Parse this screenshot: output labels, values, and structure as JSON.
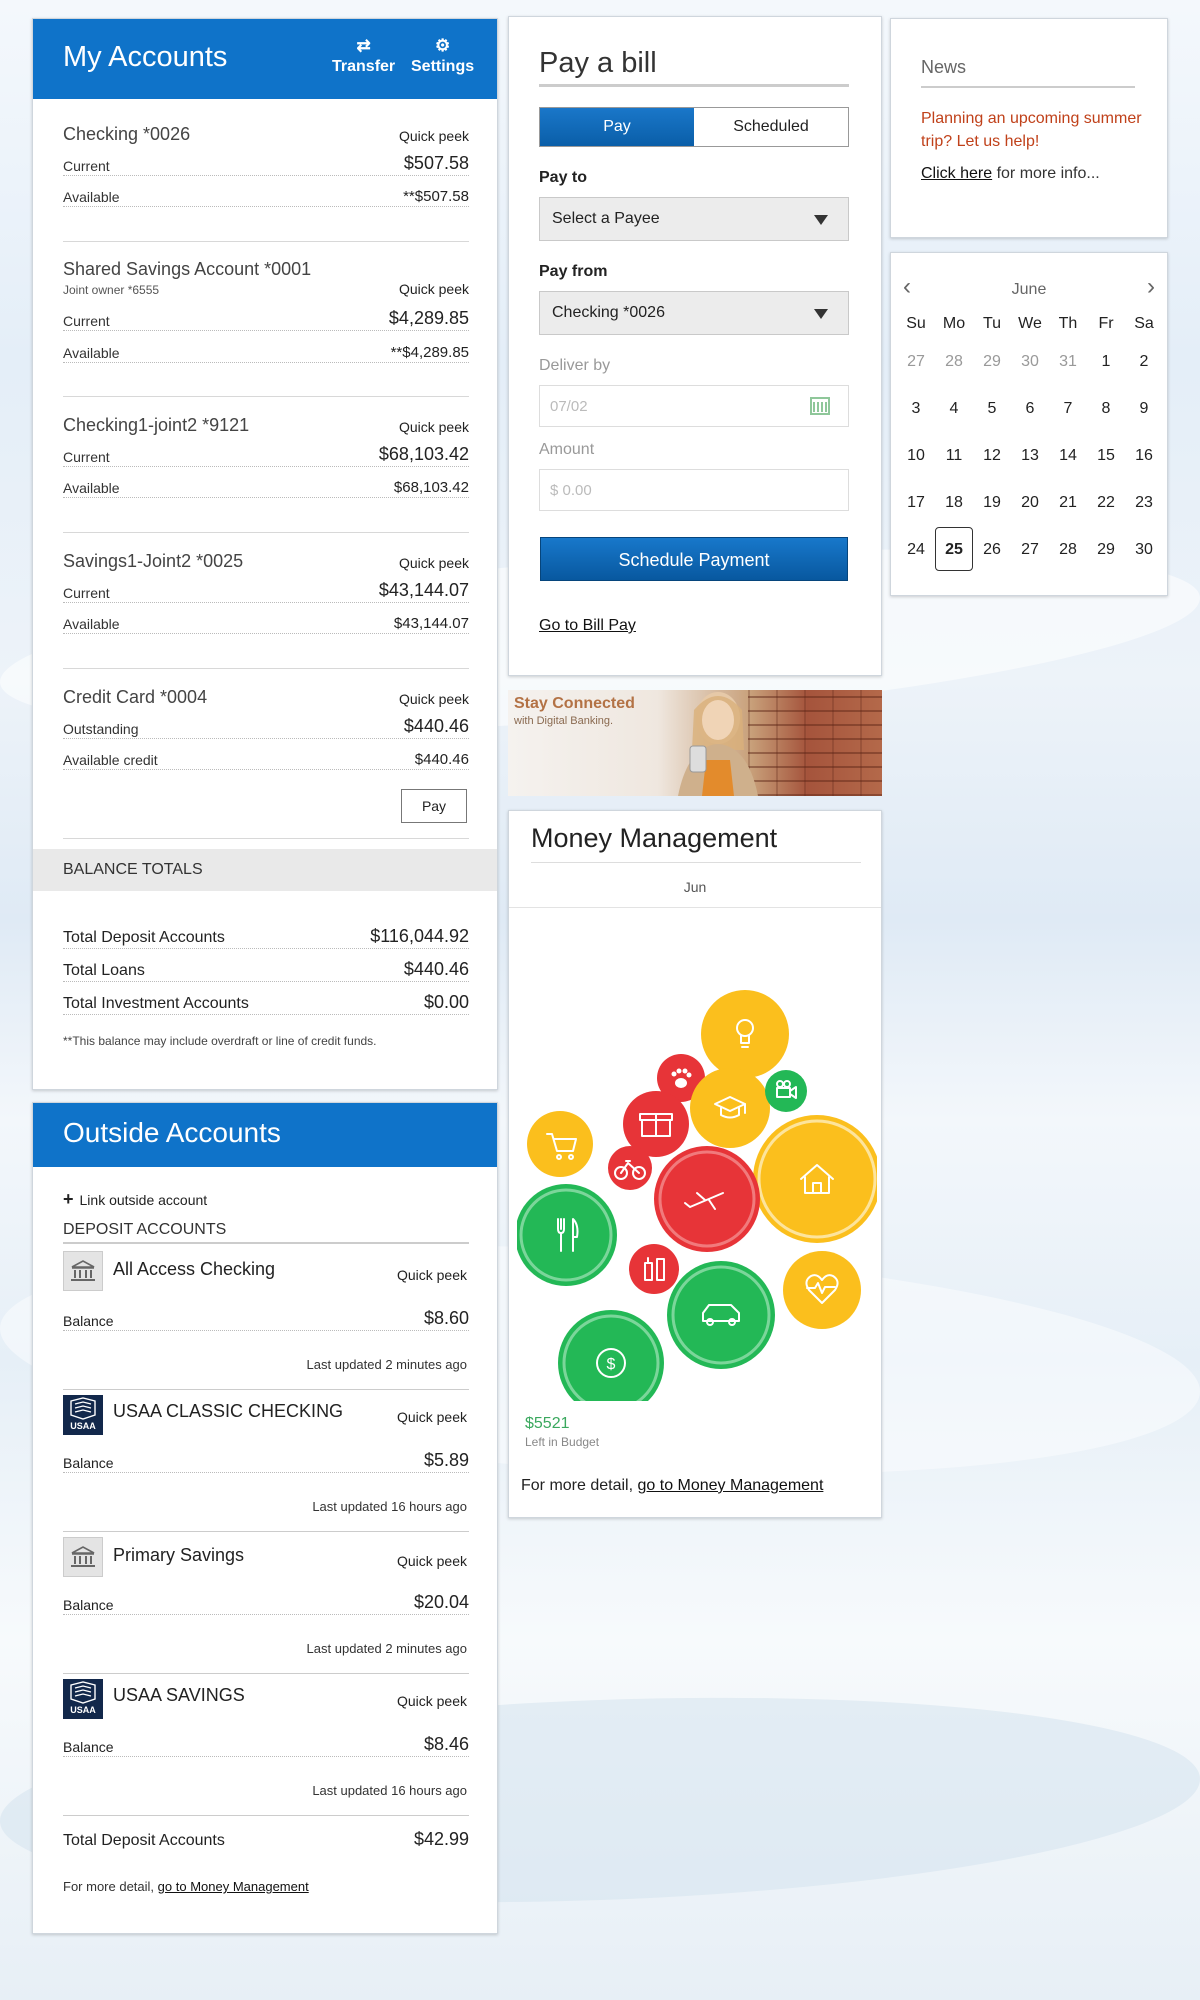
{
  "my_accounts": {
    "title": "My Accounts",
    "transfer_label": "Transfer",
    "settings_label": "Settings",
    "accounts": [
      {
        "name": "Checking  *0026",
        "quick_peek": "Quick peek",
        "rows": [
          {
            "label": "Current",
            "value": "$507.58"
          },
          {
            "label": "Available",
            "value": "**$507.58"
          }
        ]
      },
      {
        "name": "Shared Savings Account  *0001",
        "subtitle": "Joint owner *6555",
        "quick_peek": "Quick peek",
        "rows": [
          {
            "label": "Current",
            "value": "$4,289.85"
          },
          {
            "label": "Available",
            "value": "**$4,289.85"
          }
        ]
      },
      {
        "name": "Checking1-joint2  *9121",
        "quick_peek": "Quick peek",
        "rows": [
          {
            "label": "Current",
            "value": "$68,103.42"
          },
          {
            "label": "Available",
            "value": "$68,103.42"
          }
        ]
      },
      {
        "name": "Savings1-Joint2  *0025",
        "quick_peek": "Quick peek",
        "rows": [
          {
            "label": "Current",
            "value": "$43,144.07"
          },
          {
            "label": "Available",
            "value": "$43,144.07"
          }
        ]
      },
      {
        "name": "Credit Card  *0004",
        "quick_peek": "Quick peek",
        "rows": [
          {
            "label": "Outstanding",
            "value": "$440.46"
          },
          {
            "label": "Available credit",
            "value": "$440.46"
          }
        ]
      }
    ],
    "pay_label": "Pay",
    "balance_totals": {
      "header": "BALANCE TOTALS",
      "rows": [
        {
          "label": "Total Deposit Accounts",
          "value": "$116,044.92"
        },
        {
          "label": "Total Loans",
          "value": "$440.46"
        },
        {
          "label": "Total Investment Accounts",
          "value": "$0.00"
        }
      ],
      "note": "**This balance may include overdraft or line of credit funds."
    }
  },
  "outside_accounts": {
    "title": "Outside Accounts",
    "link_label": "Link outside account",
    "deposit_header": "DEPOSIT ACCOUNTS",
    "accounts": [
      {
        "name": "All Access Checking",
        "icon": "bank-icon",
        "quick_peek": "Quick peek",
        "balance_label": "Balance",
        "balance": "$8.60",
        "updated": "Last updated 2 minutes ago"
      },
      {
        "name": "USAA CLASSIC CHECKING",
        "icon": "usaa-logo",
        "logo_text": "USAA",
        "quick_peek": "Quick peek",
        "balance_label": "Balance",
        "balance": "$5.89",
        "updated": "Last updated 16 hours ago"
      },
      {
        "name": "Primary Savings",
        "icon": "bank-icon",
        "quick_peek": "Quick peek",
        "balance_label": "Balance",
        "balance": "$20.04",
        "updated": "Last updated 2 minutes ago"
      },
      {
        "name": "USAA SAVINGS",
        "icon": "usaa-logo",
        "logo_text": "USAA",
        "quick_peek": "Quick peek",
        "balance_label": "Balance",
        "balance": "$8.46",
        "updated": "Last updated 16 hours ago"
      }
    ],
    "total_label": "Total Deposit Accounts",
    "total_value": "$42.99",
    "more_prefix": "For more detail,",
    "more_link": "go to Money Management"
  },
  "pay_bill": {
    "title": "Pay a bill",
    "tabs": [
      "Pay",
      "Scheduled"
    ],
    "pay_to_label": "Pay to",
    "pay_to_value": "Select a Payee",
    "pay_from_label": "Pay from",
    "pay_from_value": "Checking *0026",
    "deliver_by_label": "Deliver by",
    "deliver_by_placeholder": "07/02",
    "amount_label": "Amount",
    "amount_placeholder": "$ 0.00",
    "schedule_button": "Schedule Payment",
    "go_link": "Go to Bill Pay"
  },
  "banner": {
    "title": "Stay Connected",
    "subtitle": "with Digital Banking."
  },
  "money_management": {
    "title": "Money Management",
    "month": "Jun",
    "left_amount": "$5521",
    "left_label": "Left in Budget",
    "more_prefix": "For more detail,",
    "more_link": "go to Money Management",
    "colors": {
      "yellow": "#fbbf1d",
      "red": "#e73438",
      "green": "#23b856"
    },
    "bubbles": [
      {
        "icon": "lightbulb-icon",
        "color": "yellow"
      },
      {
        "icon": "paw-icon",
        "color": "red"
      },
      {
        "icon": "graduation-cap-icon",
        "color": "yellow"
      },
      {
        "icon": "video-camera-icon",
        "color": "green"
      },
      {
        "icon": "shopping-cart-icon",
        "color": "yellow"
      },
      {
        "icon": "gift-icon",
        "color": "red"
      },
      {
        "icon": "bicycle-icon",
        "color": "red"
      },
      {
        "icon": "airplane-icon",
        "color": "red"
      },
      {
        "icon": "house-icon",
        "color": "yellow"
      },
      {
        "icon": "fork-knife-icon",
        "color": "green"
      },
      {
        "icon": "personal-care-icon",
        "color": "red"
      },
      {
        "icon": "car-icon",
        "color": "green"
      },
      {
        "icon": "heart-pulse-icon",
        "color": "yellow"
      },
      {
        "icon": "dollar-icon",
        "color": "green"
      }
    ]
  },
  "news": {
    "title": "News",
    "message": "Planning an upcoming summer trip? Let us help!",
    "link": "Click here",
    "link_suffix": " for more info..."
  },
  "calendar": {
    "month": "June",
    "weekdays": [
      "Su",
      "Mo",
      "Tu",
      "We",
      "Th",
      "Fr",
      "Sa"
    ],
    "weeks": [
      [
        "27",
        "28",
        "29",
        "30",
        "31",
        "1",
        "2"
      ],
      [
        "3",
        "4",
        "5",
        "6",
        "7",
        "8",
        "9"
      ],
      [
        "10",
        "11",
        "12",
        "13",
        "14",
        "15",
        "16"
      ],
      [
        "17",
        "18",
        "19",
        "20",
        "21",
        "22",
        "23"
      ],
      [
        "24",
        "25",
        "26",
        "27",
        "28",
        "29",
        "30"
      ]
    ],
    "muted_first_row_count": 5,
    "today": "25"
  }
}
